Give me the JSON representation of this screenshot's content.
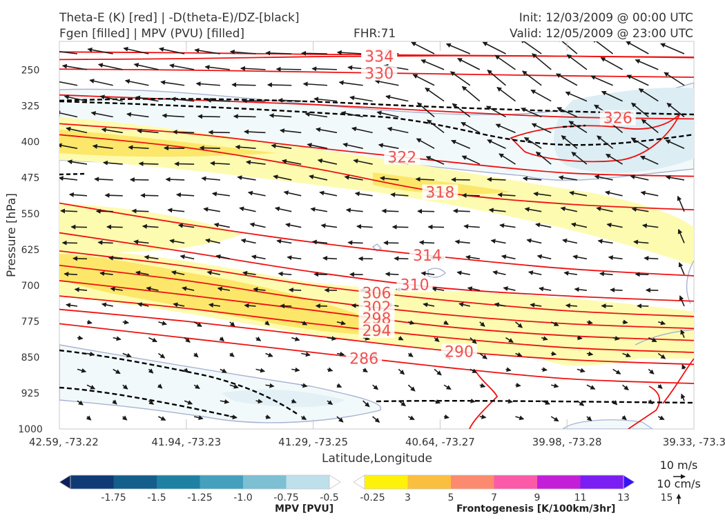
{
  "header": {
    "title_line1": "Theta-E (K) [red] | -D(theta-E)/DZ-[black]",
    "title_line2": "Fgen [filled] | MPV (PVU) [filled]",
    "fhr": "FHR:71",
    "init": "Init: 12/03/2009 @ 00:00 UTC",
    "valid": "Valid: 12/05/2009 @ 23:00 UTC"
  },
  "chart_data": {
    "type": "cross-section",
    "xlabel": "Latitude,Longitude",
    "ylabel": "Pressure [hPa]",
    "x_ticks": [
      "42.59, -73.22",
      "41.94, -73.23",
      "41.29, -73.25",
      "40.64, -73.27",
      "39.98, -73.28",
      "39.33, -73.3"
    ],
    "y_ticks": [
      250,
      325,
      400,
      475,
      550,
      625,
      700,
      775,
      850,
      925,
      1000
    ],
    "ylim": [
      1000,
      190
    ],
    "theta_e_contours": [
      {
        "label": "330",
        "label_x": 2.52,
        "p": [
          212,
          214,
          217,
          219,
          221,
          224
        ]
      },
      {
        "label": "334",
        "label_x": 2.52,
        "p": [
          228,
          226,
          222,
          220,
          221,
          223
        ]
      },
      {
        "label": "330",
        "label_x": 2.52,
        "p": [
          248,
          250,
          254,
          258,
          262,
          265
        ]
      },
      {
        "label": "326",
        "label_x": 4.4,
        "p": [
          302,
          312,
          322,
          336,
          348,
          352
        ]
      },
      {
        "label": "322",
        "label_x": 2.7,
        "p": [
          362,
          382,
          412,
          440,
          465,
          472
        ]
      },
      {
        "label": "318",
        "label_x": 3.0,
        "p": [
          385,
          412,
          455,
          505,
          530,
          542
        ]
      },
      {
        "label": "314",
        "label_x": 2.9,
        "p": [
          528,
          572,
          610,
          640,
          665,
          680
        ]
      },
      {
        "label": "310",
        "label_x": 2.8,
        "p": [
          590,
          630,
          672,
          705,
          722,
          733
        ]
      },
      {
        "label": "306",
        "label_x": 2.5,
        "p": [
          628,
          660,
          700,
          730,
          753,
          765
        ]
      },
      {
        "label": "302",
        "label_x": 2.5,
        "p": [
          658,
          690,
          730,
          760,
          780,
          790
        ]
      },
      {
        "label": "298",
        "label_x": 2.5,
        "p": [
          690,
          720,
          752,
          785,
          805,
          815
        ]
      },
      {
        "label": "294",
        "label_x": 2.5,
        "p": [
          722,
          748,
          780,
          808,
          830,
          840
        ]
      },
      {
        "label": "290",
        "label_x": 3.15,
        "p": [
          750,
          775,
          805,
          835,
          855,
          865
        ]
      },
      {
        "label": "286",
        "label_x": 2.4,
        "p": [
          780,
          810,
          840,
          870,
          895,
          905
        ]
      }
    ],
    "dthetae_dz_contours": [
      {
        "p": [
          325,
          330,
          342,
          352,
          362,
          368
        ]
      },
      {
        "p": [
          922,
          935,
          955,
          958,
          955,
          960
        ]
      }
    ],
    "mpv_colorbar": {
      "label": "MPV [PVU]",
      "tick_labels": [
        "-1.75",
        "-1.5",
        "-1.25",
        "-1.0",
        "-0.75",
        "-0.5",
        "-0.25"
      ],
      "colors": [
        "#0b1f5c",
        "#0f3a76",
        "#145e8c",
        "#1e80a2",
        "#44a0bd",
        "#7dbfd3",
        "#bde0ea",
        "#ffffff"
      ]
    },
    "fgen_colorbar": {
      "label": "Frontogenesis [K/100km/3hr]",
      "tick_labels": [
        "3",
        "5",
        "7",
        "9",
        "11",
        "13",
        "15"
      ],
      "colors": [
        "#ffffff",
        "#fff20a",
        "#fbbf3f",
        "#fc8a6e",
        "#fb5aa8",
        "#c31fd8",
        "#7a1ef3",
        "#3a12f6"
      ]
    },
    "wind_legend": {
      "speed": "10 m/s",
      "vertical": "10 cm/s"
    }
  }
}
